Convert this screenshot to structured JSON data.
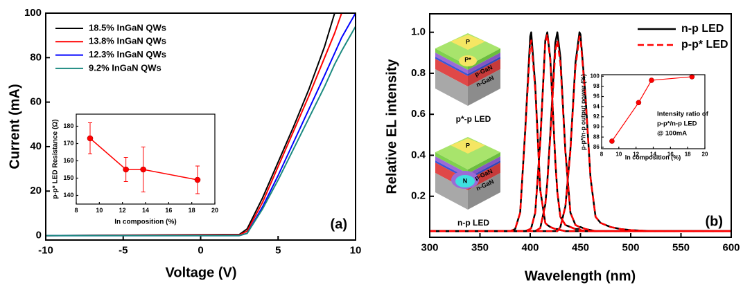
{
  "chart_data": [
    {
      "type": "line",
      "x": [
        -10,
        2.5,
        3,
        4,
        5,
        6,
        7,
        8,
        8.65,
        9.1,
        10
      ],
      "series": [
        {
          "name": "18.5% InGaN QWs",
          "color": "#000000",
          "values": [
            0,
            0.5,
            3,
            17,
            33,
            49,
            66,
            85,
            100,
            null,
            null
          ]
        },
        {
          "name": "13.8% InGaN QWs",
          "color": "#ff0000",
          "values": [
            0,
            0.3,
            2,
            15,
            31,
            47,
            63,
            80,
            91,
            100,
            null
          ]
        },
        {
          "name": "12.3% InGaN QWs",
          "color": "#0000ff",
          "values": [
            0,
            0,
            1,
            13,
            27,
            42,
            57,
            72,
            82,
            89,
            100
          ]
        },
        {
          "name": "9.2% InGaN QWs",
          "color": "#1b8a80",
          "values": [
            0,
            0,
            1,
            12,
            25,
            39,
            53,
            67,
            77,
            83,
            94
          ]
        }
      ],
      "xlabel": "Voltage (V)",
      "ylabel": "Current (mA)",
      "xlim": [
        -10,
        10
      ],
      "ylim": [
        -2,
        100
      ],
      "xticks": [
        -10,
        -5,
        0,
        5,
        10
      ],
      "yticks": [
        0,
        20,
        40,
        60,
        80,
        100
      ],
      "legend": "upper left",
      "annotation": "(a)"
    },
    {
      "type": "scatter",
      "x": [
        9.2,
        12.3,
        13.8,
        18.5
      ],
      "values": [
        173,
        155,
        155,
        149
      ],
      "errors": [
        9,
        7,
        13,
        8
      ],
      "color": "#ff0000",
      "line": true,
      "xlabel": "In composition (%)",
      "ylabel": "p-p* LED Resistance (Ω)",
      "xlim": [
        8,
        20
      ],
      "ylim": [
        135,
        187
      ],
      "xticks": [
        8,
        10,
        12,
        14,
        16,
        18,
        20
      ],
      "yticks": [
        140,
        150,
        160,
        170,
        180
      ]
    },
    {
      "type": "line",
      "x": [
        300,
        350,
        380,
        385,
        390,
        395,
        400,
        401,
        405,
        410,
        415,
        417,
        420,
        425,
        427,
        430,
        435,
        440,
        445,
        449,
        450,
        455,
        460,
        465,
        470,
        480,
        490,
        500,
        520,
        550,
        600
      ],
      "series": [
        {
          "name": "n-p LED",
          "color": "#000000",
          "dash": false,
          "values": [
            [
              0.03,
              0.03,
              0.03,
              0.04,
              0.12,
              0.52,
              0.98,
              1.0,
              0.74,
              0.23,
              0.07,
              0.06,
              0.05,
              0.04,
              0.04,
              0.035,
              0.03,
              0.03,
              0.03,
              0.03,
              0.03,
              0.03,
              0.03,
              0.03,
              0.03,
              0.03,
              0.03,
              0.03,
              0.03,
              0.03,
              0.03
            ],
            [
              0.03,
              0.03,
              0.03,
              0.03,
              0.03,
              0.03,
              0.04,
              0.045,
              0.12,
              0.47,
              0.96,
              1.0,
              0.87,
              0.37,
              0.22,
              0.1,
              0.06,
              0.05,
              0.04,
              0.04,
              0.035,
              0.03,
              0.03,
              0.03,
              0.03,
              0.03,
              0.03,
              0.03,
              0.03,
              0.03,
              0.03
            ],
            [
              0.03,
              0.03,
              0.03,
              0.03,
              0.03,
              0.03,
              0.03,
              0.03,
              0.03,
              0.045,
              0.16,
              0.27,
              0.51,
              0.95,
              1.0,
              0.88,
              0.42,
              0.12,
              0.06,
              0.05,
              0.05,
              0.04,
              0.035,
              0.03,
              0.03,
              0.03,
              0.03,
              0.03,
              0.03,
              0.03,
              0.03
            ],
            [
              0.03,
              0.03,
              0.03,
              0.03,
              0.03,
              0.03,
              0.03,
              0.03,
              0.03,
              0.03,
              0.03,
              0.03,
              0.03,
              0.03,
              0.03,
              0.05,
              0.15,
              0.43,
              0.85,
              1.0,
              0.99,
              0.69,
              0.29,
              0.1,
              0.07,
              0.05,
              0.04,
              0.035,
              0.03,
              0.03,
              0.03
            ]
          ]
        },
        {
          "name": "p-p* LED",
          "color": "#ff0000",
          "dash": true,
          "values": [
            [
              0.03,
              0.03,
              0.03,
              0.04,
              0.12,
              0.51,
              0.94,
              0.96,
              0.72,
              0.23,
              0.07,
              0.06,
              0.05,
              0.04,
              0.04,
              0.035,
              0.03,
              0.03,
              0.03,
              0.03,
              0.03,
              0.03,
              0.03,
              0.03,
              0.03,
              0.03,
              0.03,
              0.03,
              0.03,
              0.03,
              0.03
            ],
            [
              0.03,
              0.03,
              0.03,
              0.03,
              0.03,
              0.03,
              0.04,
              0.045,
              0.12,
              0.46,
              0.95,
              0.99,
              0.86,
              0.37,
              0.22,
              0.1,
              0.06,
              0.05,
              0.04,
              0.04,
              0.035,
              0.03,
              0.03,
              0.03,
              0.03,
              0.03,
              0.03,
              0.03,
              0.03,
              0.03,
              0.03
            ],
            [
              0.03,
              0.03,
              0.03,
              0.03,
              0.03,
              0.03,
              0.03,
              0.03,
              0.03,
              0.045,
              0.16,
              0.26,
              0.49,
              0.91,
              0.96,
              0.85,
              0.41,
              0.12,
              0.06,
              0.05,
              0.05,
              0.04,
              0.035,
              0.03,
              0.03,
              0.03,
              0.03,
              0.03,
              0.03,
              0.03,
              0.03
            ],
            [
              0.03,
              0.03,
              0.03,
              0.03,
              0.03,
              0.03,
              0.03,
              0.03,
              0.03,
              0.03,
              0.03,
              0.03,
              0.03,
              0.03,
              0.03,
              0.05,
              0.15,
              0.42,
              0.83,
              0.98,
              0.97,
              0.68,
              0.29,
              0.1,
              0.07,
              0.05,
              0.04,
              0.035,
              0.03,
              0.03,
              0.03
            ]
          ]
        }
      ],
      "xlabel": "Wavelength (nm)",
      "ylabel": "Relative EL intensity",
      "xlim": [
        300,
        600
      ],
      "ylim": [
        0,
        1.09
      ],
      "xticks": [
        300,
        350,
        400,
        450,
        500,
        550,
        600
      ],
      "yticks": [
        0.2,
        0.4,
        0.6,
        0.8,
        {
          "value": 1,
          "label": "1.0"
        }
      ],
      "legend": "upper right",
      "annotation": "(b)"
    },
    {
      "type": "scatter",
      "x": [
        9.2,
        12.3,
        13.8,
        18.5
      ],
      "values": [
        87.2,
        94.8,
        99.2,
        99.9
      ],
      "color": "#ff0000",
      "line": true,
      "xlabel": "In composition (%)",
      "ylabel": "p-p*/n-p output power (%)",
      "xlim": [
        8,
        20
      ],
      "ylim": [
        85.7,
        100.3
      ],
      "xticks": [
        8,
        10,
        12,
        14,
        16,
        18,
        20
      ],
      "yticks": [
        86,
        88,
        90,
        92,
        94,
        96,
        98,
        100
      ],
      "annotation": [
        "Intensity ratio of",
        "p-p*/n-p LED",
        "@ 100mA"
      ]
    }
  ],
  "diagrams": [
    {
      "labels": {
        "top": "P",
        "mid": "P*",
        "p": "p-GaN",
        "n": "n-GaN"
      },
      "caption": "p*-p LED"
    },
    {
      "labels": {
        "top": "P",
        "mid": "N",
        "p": "p-GaN",
        "n": "n-GaN"
      },
      "caption": "n-p LED"
    }
  ]
}
